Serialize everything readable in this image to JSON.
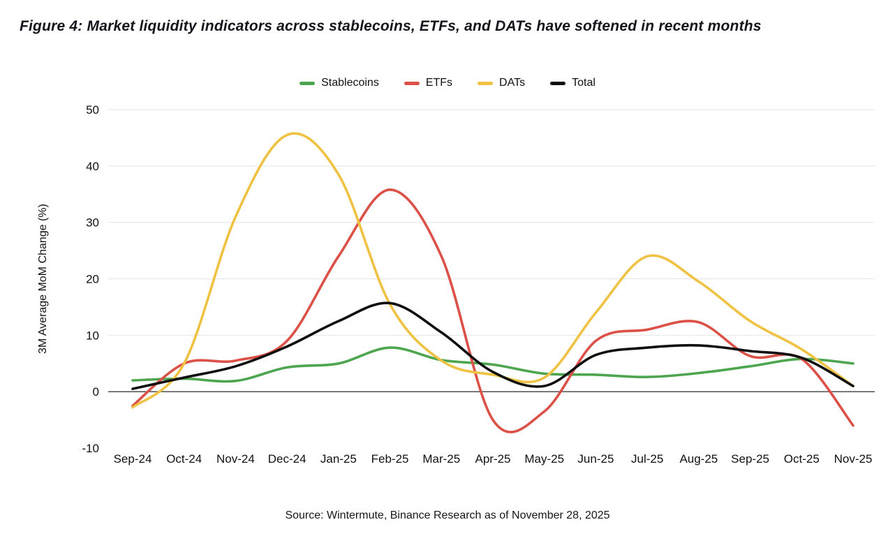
{
  "figure": {
    "title": "Figure 4: Market liquidity indicators across stablecoins, ETFs, and DATs have softened in recent months",
    "source": "Source: Wintermute, Binance Research as of November 28, 2025"
  },
  "chart_data": {
    "type": "line",
    "title": "Figure 4: Market liquidity indicators across stablecoins, ETFs, and DATs have softened in recent months",
    "xlabel": "",
    "ylabel": "3M Average MoM Change (%)",
    "x": [
      "Sep-24",
      "Oct-24",
      "Nov-24",
      "Dec-24",
      "Jan-25",
      "Feb-25",
      "Mar-25",
      "Apr-25",
      "May-25",
      "Jun-25",
      "Jul-25",
      "Aug-25",
      "Sep-25",
      "Oct-25",
      "Nov-25"
    ],
    "ylim": [
      -10,
      50
    ],
    "yticks": [
      50,
      40,
      30,
      20,
      10,
      0,
      -10
    ],
    "grid": "horizontal-light",
    "zero_line": true,
    "legend_position": "top-center",
    "series": [
      {
        "name": "Stablecoins",
        "color": "#4da64f",
        "values": [
          2.0,
          2.3,
          1.9,
          4.3,
          5.0,
          7.8,
          5.6,
          4.8,
          3.2,
          3.0,
          2.6,
          3.3,
          4.5,
          5.8,
          5.0
        ]
      },
      {
        "name": "ETFs",
        "color": "#dc5147",
        "values": [
          -2.5,
          5.0,
          5.5,
          9.0,
          24.0,
          35.8,
          24.0,
          -5.0,
          -3.5,
          9.0,
          11.0,
          12.3,
          6.3,
          5.8,
          -6.0
        ]
      },
      {
        "name": "DATs",
        "color": "#f0c243",
        "values": [
          -2.8,
          5.0,
          31.0,
          45.5,
          38.5,
          15.5,
          5.5,
          3.0,
          2.5,
          14.0,
          24.0,
          19.5,
          12.5,
          7.5,
          1.0
        ]
      },
      {
        "name": "Total",
        "color": "#0f0f0f",
        "values": [
          0.5,
          2.5,
          4.5,
          8.0,
          12.5,
          15.7,
          10.5,
          3.5,
          1.0,
          6.5,
          7.8,
          8.2,
          7.2,
          6.0,
          1.0
        ]
      }
    ]
  }
}
